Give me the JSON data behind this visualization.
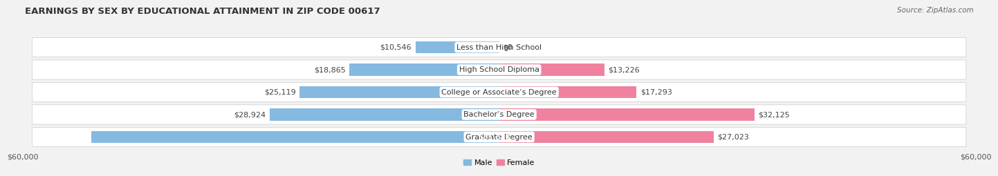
{
  "title": "EARNINGS BY SEX BY EDUCATIONAL ATTAINMENT IN ZIP CODE 00617",
  "source": "Source: ZipAtlas.com",
  "categories": [
    "Less than High School",
    "High School Diploma",
    "College or Associate’s Degree",
    "Bachelor’s Degree",
    "Graduate Degree"
  ],
  "male_values": [
    10546,
    18865,
    25119,
    28924,
    51373
  ],
  "female_values": [
    0,
    13226,
    17293,
    32125,
    27023
  ],
  "male_color": "#85b9e0",
  "female_color": "#f082a0",
  "male_label": "Male",
  "female_label": "Female",
  "x_max": 60000,
  "x_label_left": "$60,000",
  "x_label_right": "$60,000",
  "background_color": "#f2f2f2",
  "row_bg_color": "#e8e8e8",
  "title_fontsize": 9.5,
  "source_fontsize": 7.5,
  "label_fontsize": 8,
  "cat_fontsize": 8
}
